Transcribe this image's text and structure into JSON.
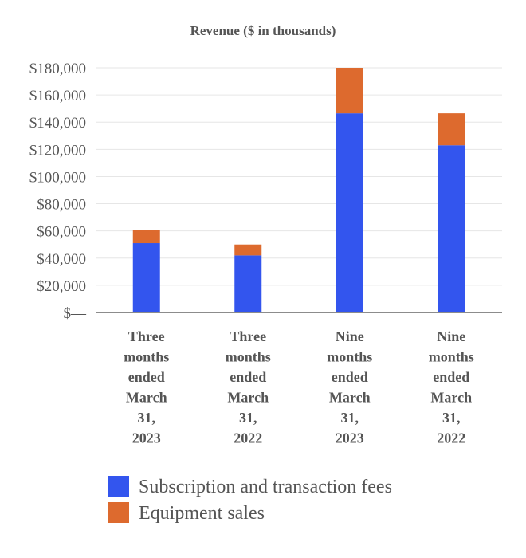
{
  "chart_data": {
    "type": "bar",
    "stacked": true,
    "title": "Revenue ($ in thousands)",
    "xlabel": "",
    "ylabel": "",
    "categories": [
      [
        "Three",
        "months",
        "ended",
        "March",
        "31,",
        "2023"
      ],
      [
        "Three",
        "months",
        "ended",
        "March",
        "31,",
        "2022"
      ],
      [
        "Nine",
        "months",
        "ended",
        "March",
        "31,",
        "2023"
      ],
      [
        "Nine",
        "months",
        "ended",
        "March",
        "31,",
        "2022"
      ]
    ],
    "series": [
      {
        "name": "Subscription and transaction fees",
        "color": "#3355ee",
        "values": [
          51000,
          42000,
          146500,
          123000
        ]
      },
      {
        "name": "Equipment sales",
        "color": "#dd6a2e",
        "values": [
          9700,
          8000,
          33500,
          23500
        ]
      }
    ],
    "ylim": [
      0,
      180000
    ],
    "yticks": [
      {
        "value": 0,
        "label": "$—"
      },
      {
        "value": 20000,
        "label": "$20,000"
      },
      {
        "value": 40000,
        "label": "$40,000"
      },
      {
        "value": 60000,
        "label": "$60,000"
      },
      {
        "value": 80000,
        "label": "$80,000"
      },
      {
        "value": 100000,
        "label": "$100,000"
      },
      {
        "value": 120000,
        "label": "$120,000"
      },
      {
        "value": 140000,
        "label": "$140,000"
      },
      {
        "value": 160000,
        "label": "$160,000"
      },
      {
        "value": 180000,
        "label": "$180,000"
      }
    ],
    "grid": true,
    "legend_position": "bottom"
  }
}
